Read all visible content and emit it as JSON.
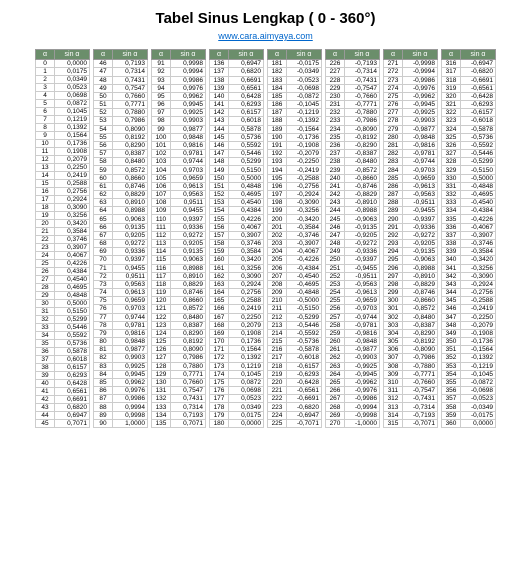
{
  "title": "Tabel Sinus Lengkap ( 0 - 360°)",
  "link_text": "www.cara.aimyaya.com",
  "hdr_a": "α",
  "hdr_v": "sin α",
  "style": {
    "header_bg": "#6b8e6b",
    "header_fg": "#ffffff",
    "border": "#cccccc",
    "page_bg": "#ffffff",
    "title_fontsize": 15,
    "cell_fontsize": 6.5,
    "columns": 8,
    "rows_per_col": 46,
    "font_family": "Arial"
  }
}
